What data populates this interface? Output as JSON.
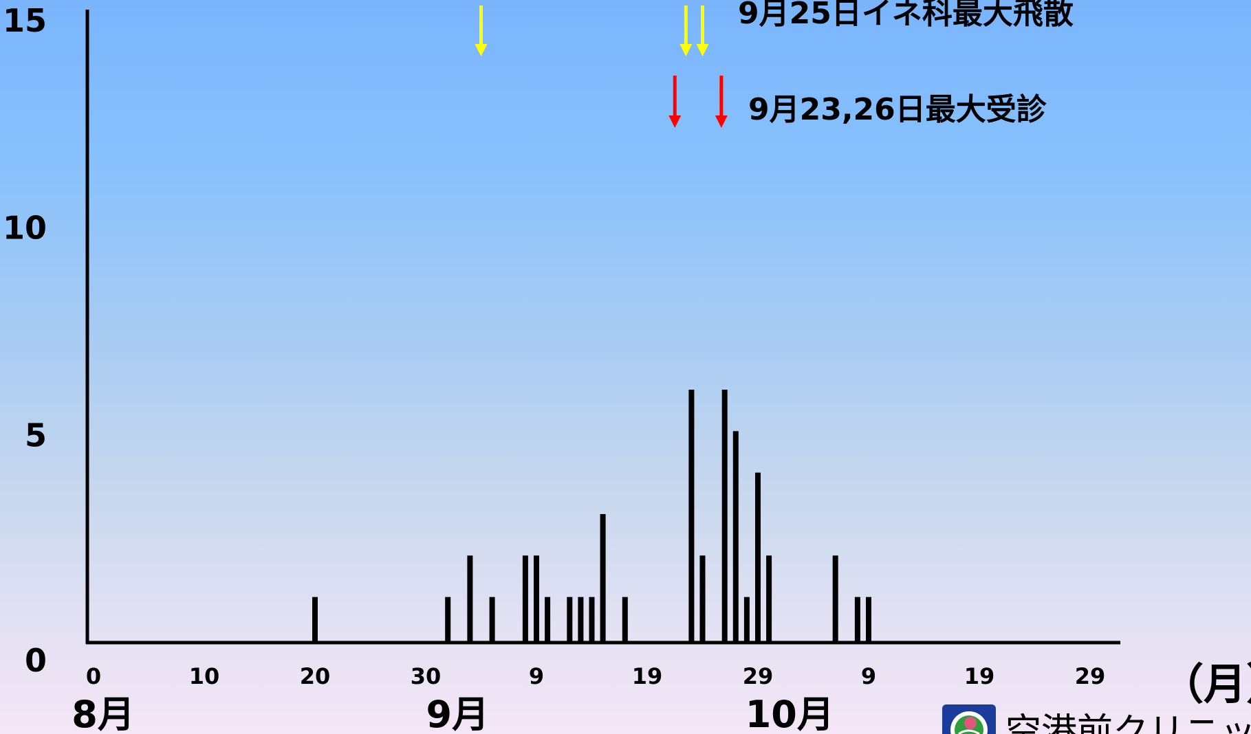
{
  "chart_data": {
    "type": "bar",
    "x_day_index": [
      20,
      32,
      34,
      36,
      39,
      40,
      41,
      43,
      44,
      45,
      46,
      48,
      54,
      55,
      57,
      58,
      59,
      60,
      61,
      67,
      69,
      70
    ],
    "values": [
      1,
      1,
      2,
      1,
      2,
      2,
      1,
      1,
      1,
      1,
      3,
      1,
      6,
      2,
      6,
      5,
      1,
      4,
      2,
      2,
      1,
      1
    ],
    "ylim": [
      0,
      15
    ],
    "yticks": [
      "0",
      "5",
      "10",
      "15"
    ],
    "xticks": [
      "0",
      "10",
      "20",
      "30",
      "9",
      "19",
      "29",
      "9",
      "19",
      "29"
    ],
    "xtick_positions": [
      0,
      10,
      20,
      30,
      40,
      50,
      60,
      70,
      80,
      90
    ],
    "xlim": [
      0,
      93
    ],
    "months": [
      {
        "label": "8月",
        "day_index": 1
      },
      {
        "label": "9月",
        "day_index": 33
      },
      {
        "label": "10月",
        "day_index": 63
      }
    ],
    "unit_label": "（月）",
    "annotations": [
      {
        "text": "9月25日イネ科最大飛散",
        "color": "#ffff00",
        "arrow_day_index": [
          35,
          53.5,
          55
        ]
      },
      {
        "text": "9月23,26日最大受診",
        "color": "#ff0000",
        "arrow_day_index": [
          52.5,
          56.7
        ]
      }
    ],
    "grid": false,
    "colors": {
      "bar": "#000000",
      "axis": "#000000"
    }
  },
  "footer": {
    "clinic_name": "空港前クリニック",
    "logo_icon": "clinic-logo-icon"
  }
}
